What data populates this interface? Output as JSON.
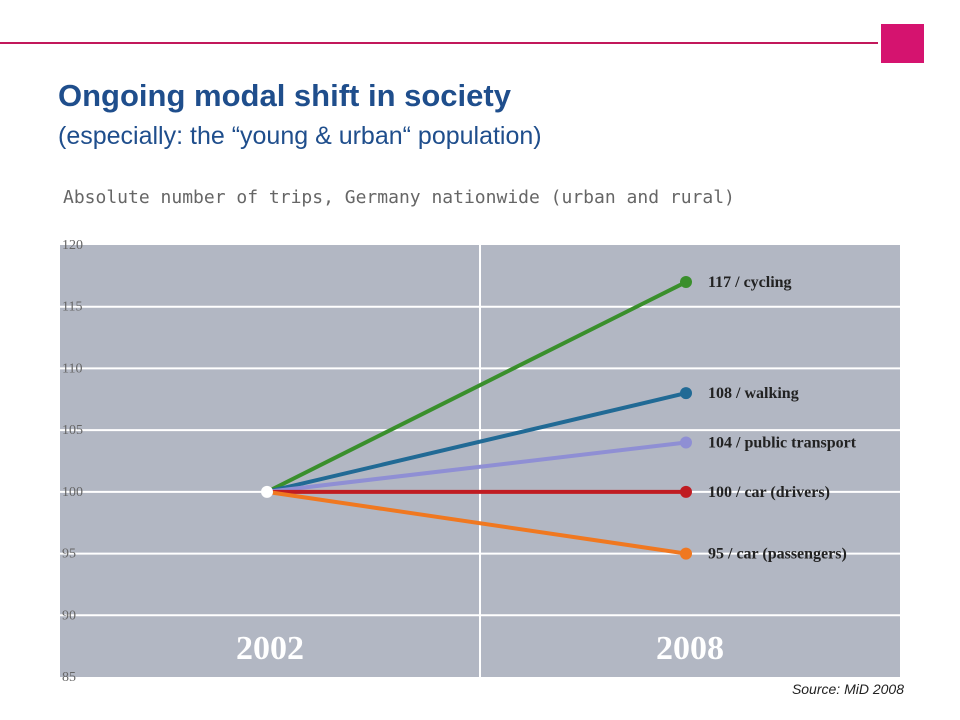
{
  "header": {
    "title": "Ongoing modal shift in society",
    "subtitle": "(especially: the “young & urban“ population)"
  },
  "chart_caption": "Absolute number of trips, Germany nationwide (urban and rural)",
  "source": "Source: MiD 2008",
  "colors": {
    "accent": "#d5136f",
    "title": "#1f4e8c",
    "plot_background": "#b2b7c3",
    "grid": "#ffffff"
  },
  "chart_data": {
    "type": "line",
    "x": [
      "2002",
      "2008"
    ],
    "ylim": [
      85,
      120
    ],
    "yticks": [
      85,
      90,
      95,
      100,
      105,
      110,
      115,
      120
    ],
    "grid": true,
    "series": [
      {
        "label": "117 / cycling",
        "values": [
          100,
          117
        ],
        "color": "#3a8f2c"
      },
      {
        "label": "108 / walking",
        "values": [
          100,
          108
        ],
        "color": "#216a95"
      },
      {
        "label": "104 / public transport",
        "values": [
          100,
          104
        ],
        "color": "#8f8fd4"
      },
      {
        "label": "100 / car (drivers)",
        "values": [
          100,
          100
        ],
        "color": "#c01c22"
      },
      {
        "label": "95 / car (passengers)",
        "values": [
          100,
          95
        ],
        "color": "#f07820"
      }
    ]
  }
}
